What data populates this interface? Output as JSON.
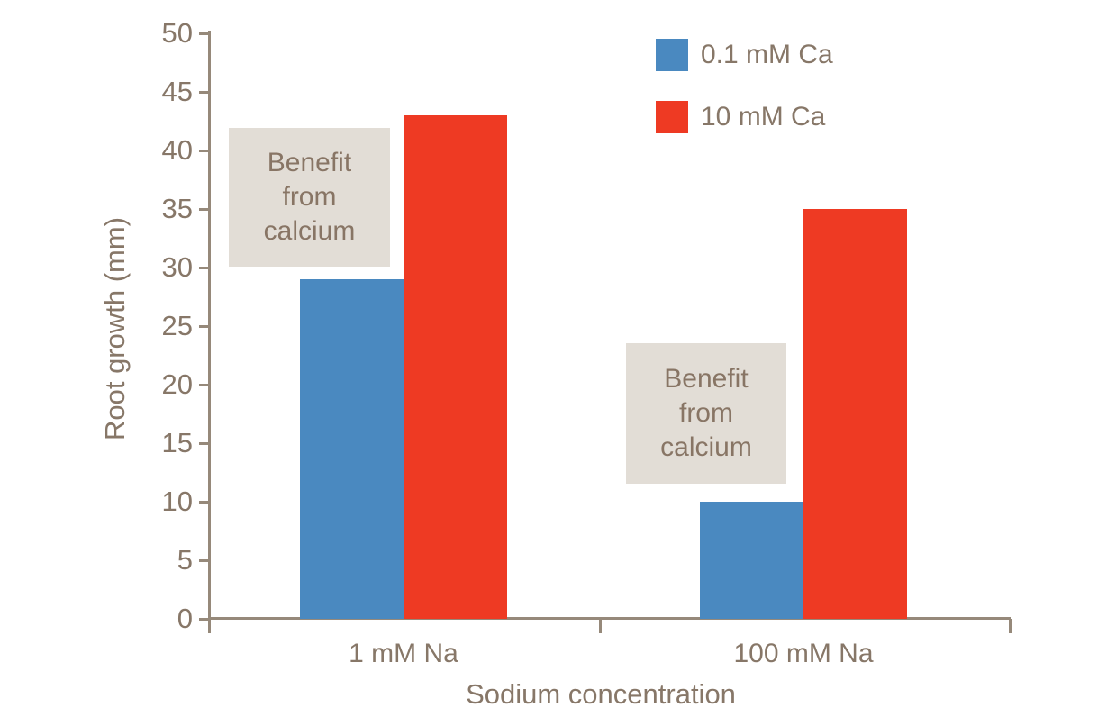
{
  "chart_data": {
    "type": "bar",
    "title": "",
    "categories": [
      "1 mM Na",
      "100 mM Na"
    ],
    "series": [
      {
        "name": "0.1 mM Ca",
        "color": "#4a89c0",
        "values": [
          29,
          10
        ]
      },
      {
        "name": "10 mM Ca",
        "color": "#ee3a23",
        "values": [
          43,
          35
        ]
      }
    ],
    "xlabel": "Sodium concentration",
    "ylabel": "Root growth (mm)",
    "ylim": [
      0,
      50
    ],
    "y_ticks": [
      0,
      5,
      10,
      15,
      20,
      25,
      30,
      35,
      40,
      45,
      50
    ],
    "grid": false,
    "legend_position": "top-right",
    "annotations": [
      {
        "lines": [
          "Benefit",
          "from",
          "calcium"
        ]
      },
      {
        "lines": [
          "Benefit",
          "from",
          "calcium"
        ]
      }
    ]
  },
  "colors": {
    "axis": "#96897a",
    "text": "#877768",
    "note_background": "#e2ddd6",
    "note_text": "#887565",
    "background": "#ffffff"
  }
}
